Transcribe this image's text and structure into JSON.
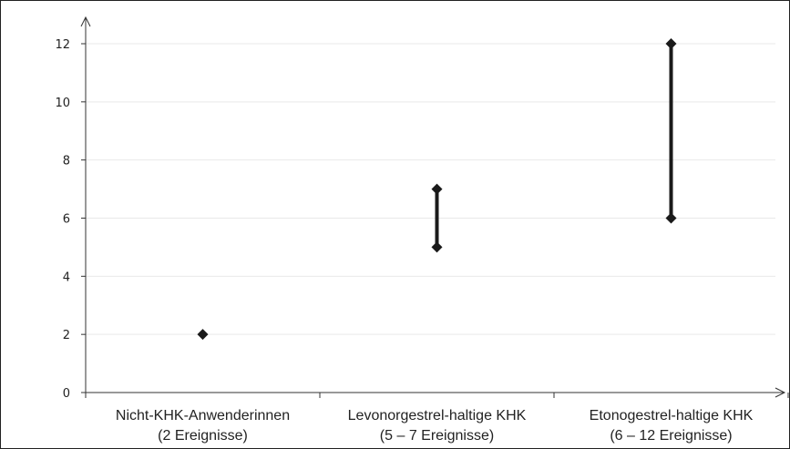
{
  "chart_data": {
    "type": "range",
    "title": "",
    "xlabel": "",
    "ylabel": "",
    "ylim": [
      0,
      12
    ],
    "yticks": [
      "0",
      "2",
      "4",
      "6",
      "8",
      "10",
      "12"
    ],
    "grid": "horizontal",
    "categories": [
      {
        "line1": "Nicht-KHK-Anwenderinnen",
        "line2": "(2 Ereignisse)",
        "low": 2,
        "high": 2
      },
      {
        "line1": "Levonorgestrel-haltige KHK",
        "line2": "(5 – 7 Ereignisse)",
        "low": 5,
        "high": 7
      },
      {
        "line1": "Etonogestrel-haltige KHK",
        "line2": "(6 – 12 Ereignisse)",
        "low": 6,
        "high": 12
      }
    ],
    "colors": {
      "marker": "#1a1a1a",
      "axis": "#333333",
      "grid": "#e9e9e9"
    }
  }
}
